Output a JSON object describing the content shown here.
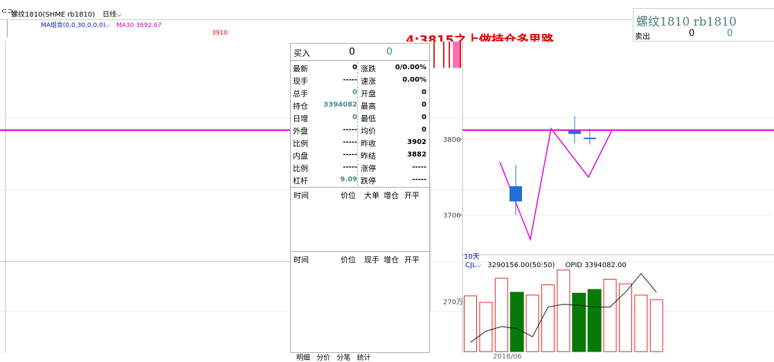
{
  "header": {
    "symbol": "螺纹1810(SHME rb1810)",
    "period": "日线",
    "ma_label": "MA组合(0,0,30,0,0,0)",
    "ma30_label": "MA30 3692.67",
    "price_label": "3910"
  },
  "right_title": {
    "title": "螺纹1810 rb1810",
    "sell_label": "卖出",
    "sell_price": "0",
    "sell_volume": "0"
  },
  "annotation": "4:3815之上做持仓多思路",
  "quote": {
    "buy_label": "买入",
    "buy_price": "0",
    "buy_volume": "0",
    "left": [
      {
        "label": "最新",
        "value": "0"
      },
      {
        "label": "现手",
        "value": "-----"
      },
      {
        "label": "总手",
        "value": "0"
      },
      {
        "label": "持仓",
        "value": "3394082"
      },
      {
        "label": "日增",
        "value": "0"
      },
      {
        "label": "外盘",
        "value": "-----"
      },
      {
        "label": "比例",
        "value": "-----"
      },
      {
        "label": "内盘",
        "value": "-----"
      },
      {
        "label": "比例",
        "value": "-----"
      },
      {
        "label": "杠杆",
        "value": "9.09"
      }
    ],
    "right": [
      {
        "label": "涨跌",
        "value": "0/0.00%"
      },
      {
        "label": "速涨",
        "value": "0.00%"
      },
      {
        "label": "开盘",
        "value": "0"
      },
      {
        "label": "最高",
        "value": "0"
      },
      {
        "label": "最低",
        "value": "0"
      },
      {
        "label": "均价",
        "value": "0"
      },
      {
        "label": "昨收",
        "value": "3902"
      },
      {
        "label": "昨结",
        "value": "3882"
      },
      {
        "label": "涨停",
        "value": "-----"
      },
      {
        "label": "跌停",
        "value": "-----"
      }
    ],
    "ticks_header": [
      "时间",
      "价位",
      "大单",
      "增仓",
      "开平"
    ],
    "trades_header": [
      "时间",
      "价位",
      "现手",
      "增仓",
      "开平"
    ],
    "tabs": [
      "明细",
      "分价",
      "分笔",
      "统计"
    ]
  },
  "volume_header": {
    "indicator": "CJL",
    "volume_text": "3290156.00(50:50)",
    "opid_text": "OPID 3394082.00"
  },
  "days_label": "10天",
  "chart_data": {
    "type": "candlestick",
    "title": "",
    "y_ticks": [
      3700,
      3800
    ],
    "ylim": [
      3655,
      3885
    ],
    "horizontal_line": 3812,
    "x_label": "2018/06",
    "candles": [
      {
        "open": 3718,
        "close": 3738,
        "high": 3766,
        "low": 3700,
        "color": "#1e6fd8"
      },
      {
        "open": 3811,
        "close": 3807,
        "high": 3830,
        "low": 3795,
        "color": "#1e6fd8"
      },
      {
        "open": 3802,
        "close": 3802,
        "high": 3814,
        "low": 3793,
        "color": "#1e6fd8"
      }
    ],
    "volume_ylabel": "270万",
    "volume_ylim": [
      0,
      4400000
    ],
    "volume_bars": [
      {
        "value": 3000000,
        "color": "red"
      },
      {
        "value": 2650000,
        "color": "red"
      },
      {
        "value": 3950000,
        "color": "red"
      },
      {
        "value": 3200000,
        "color": "green"
      },
      {
        "value": 3050000,
        "color": "red"
      },
      {
        "value": 3600000,
        "color": "red"
      },
      {
        "value": 4400000,
        "color": "red"
      },
      {
        "value": 3150000,
        "color": "green"
      },
      {
        "value": 3350000,
        "color": "green"
      },
      {
        "value": 3900000,
        "color": "red"
      },
      {
        "value": 3650000,
        "color": "red"
      },
      {
        "value": 3050000,
        "color": "red"
      },
      {
        "value": 2800000,
        "color": "red"
      }
    ],
    "opid_line": [
      500000,
      1100000,
      1350000,
      1250000,
      800000,
      2400000,
      2550000,
      2500000,
      2400000,
      2400000,
      3200000,
      4200000,
      3200000
    ]
  }
}
